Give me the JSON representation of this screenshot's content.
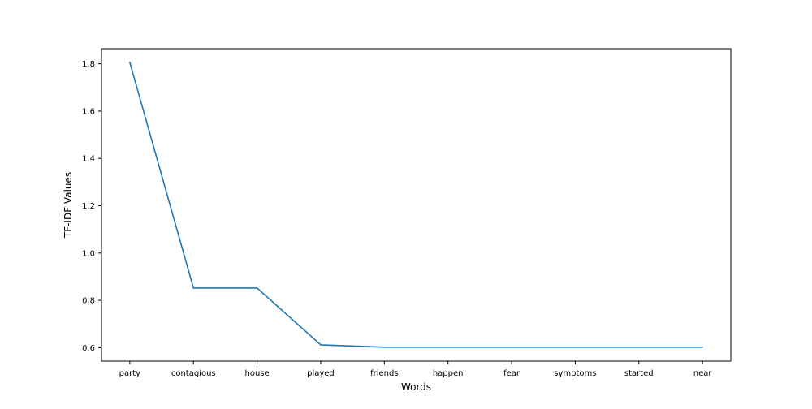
{
  "chart_data": {
    "type": "line",
    "title": "",
    "xlabel": "Words",
    "ylabel": "TF-IDF Values",
    "categories": [
      "party",
      "contagious",
      "house",
      "played",
      "friends",
      "happen",
      "fear",
      "symptoms",
      "started",
      "near"
    ],
    "series": [
      {
        "values": [
          1.806,
          0.852,
          0.852,
          0.612,
          0.602,
          0.602,
          0.602,
          0.602,
          0.602,
          0.602
        ],
        "color": "#1f77b4"
      }
    ],
    "ylim": [
      0.543,
      1.864
    ],
    "yticks": [
      0.6,
      0.8,
      1.0,
      1.2,
      1.4,
      1.6,
      1.8
    ],
    "ytick_labels": [
      "0.6",
      "0.8",
      "1.0",
      "1.2",
      "1.4",
      "1.6",
      "1.8"
    ],
    "grid": false,
    "legend": "none"
  }
}
